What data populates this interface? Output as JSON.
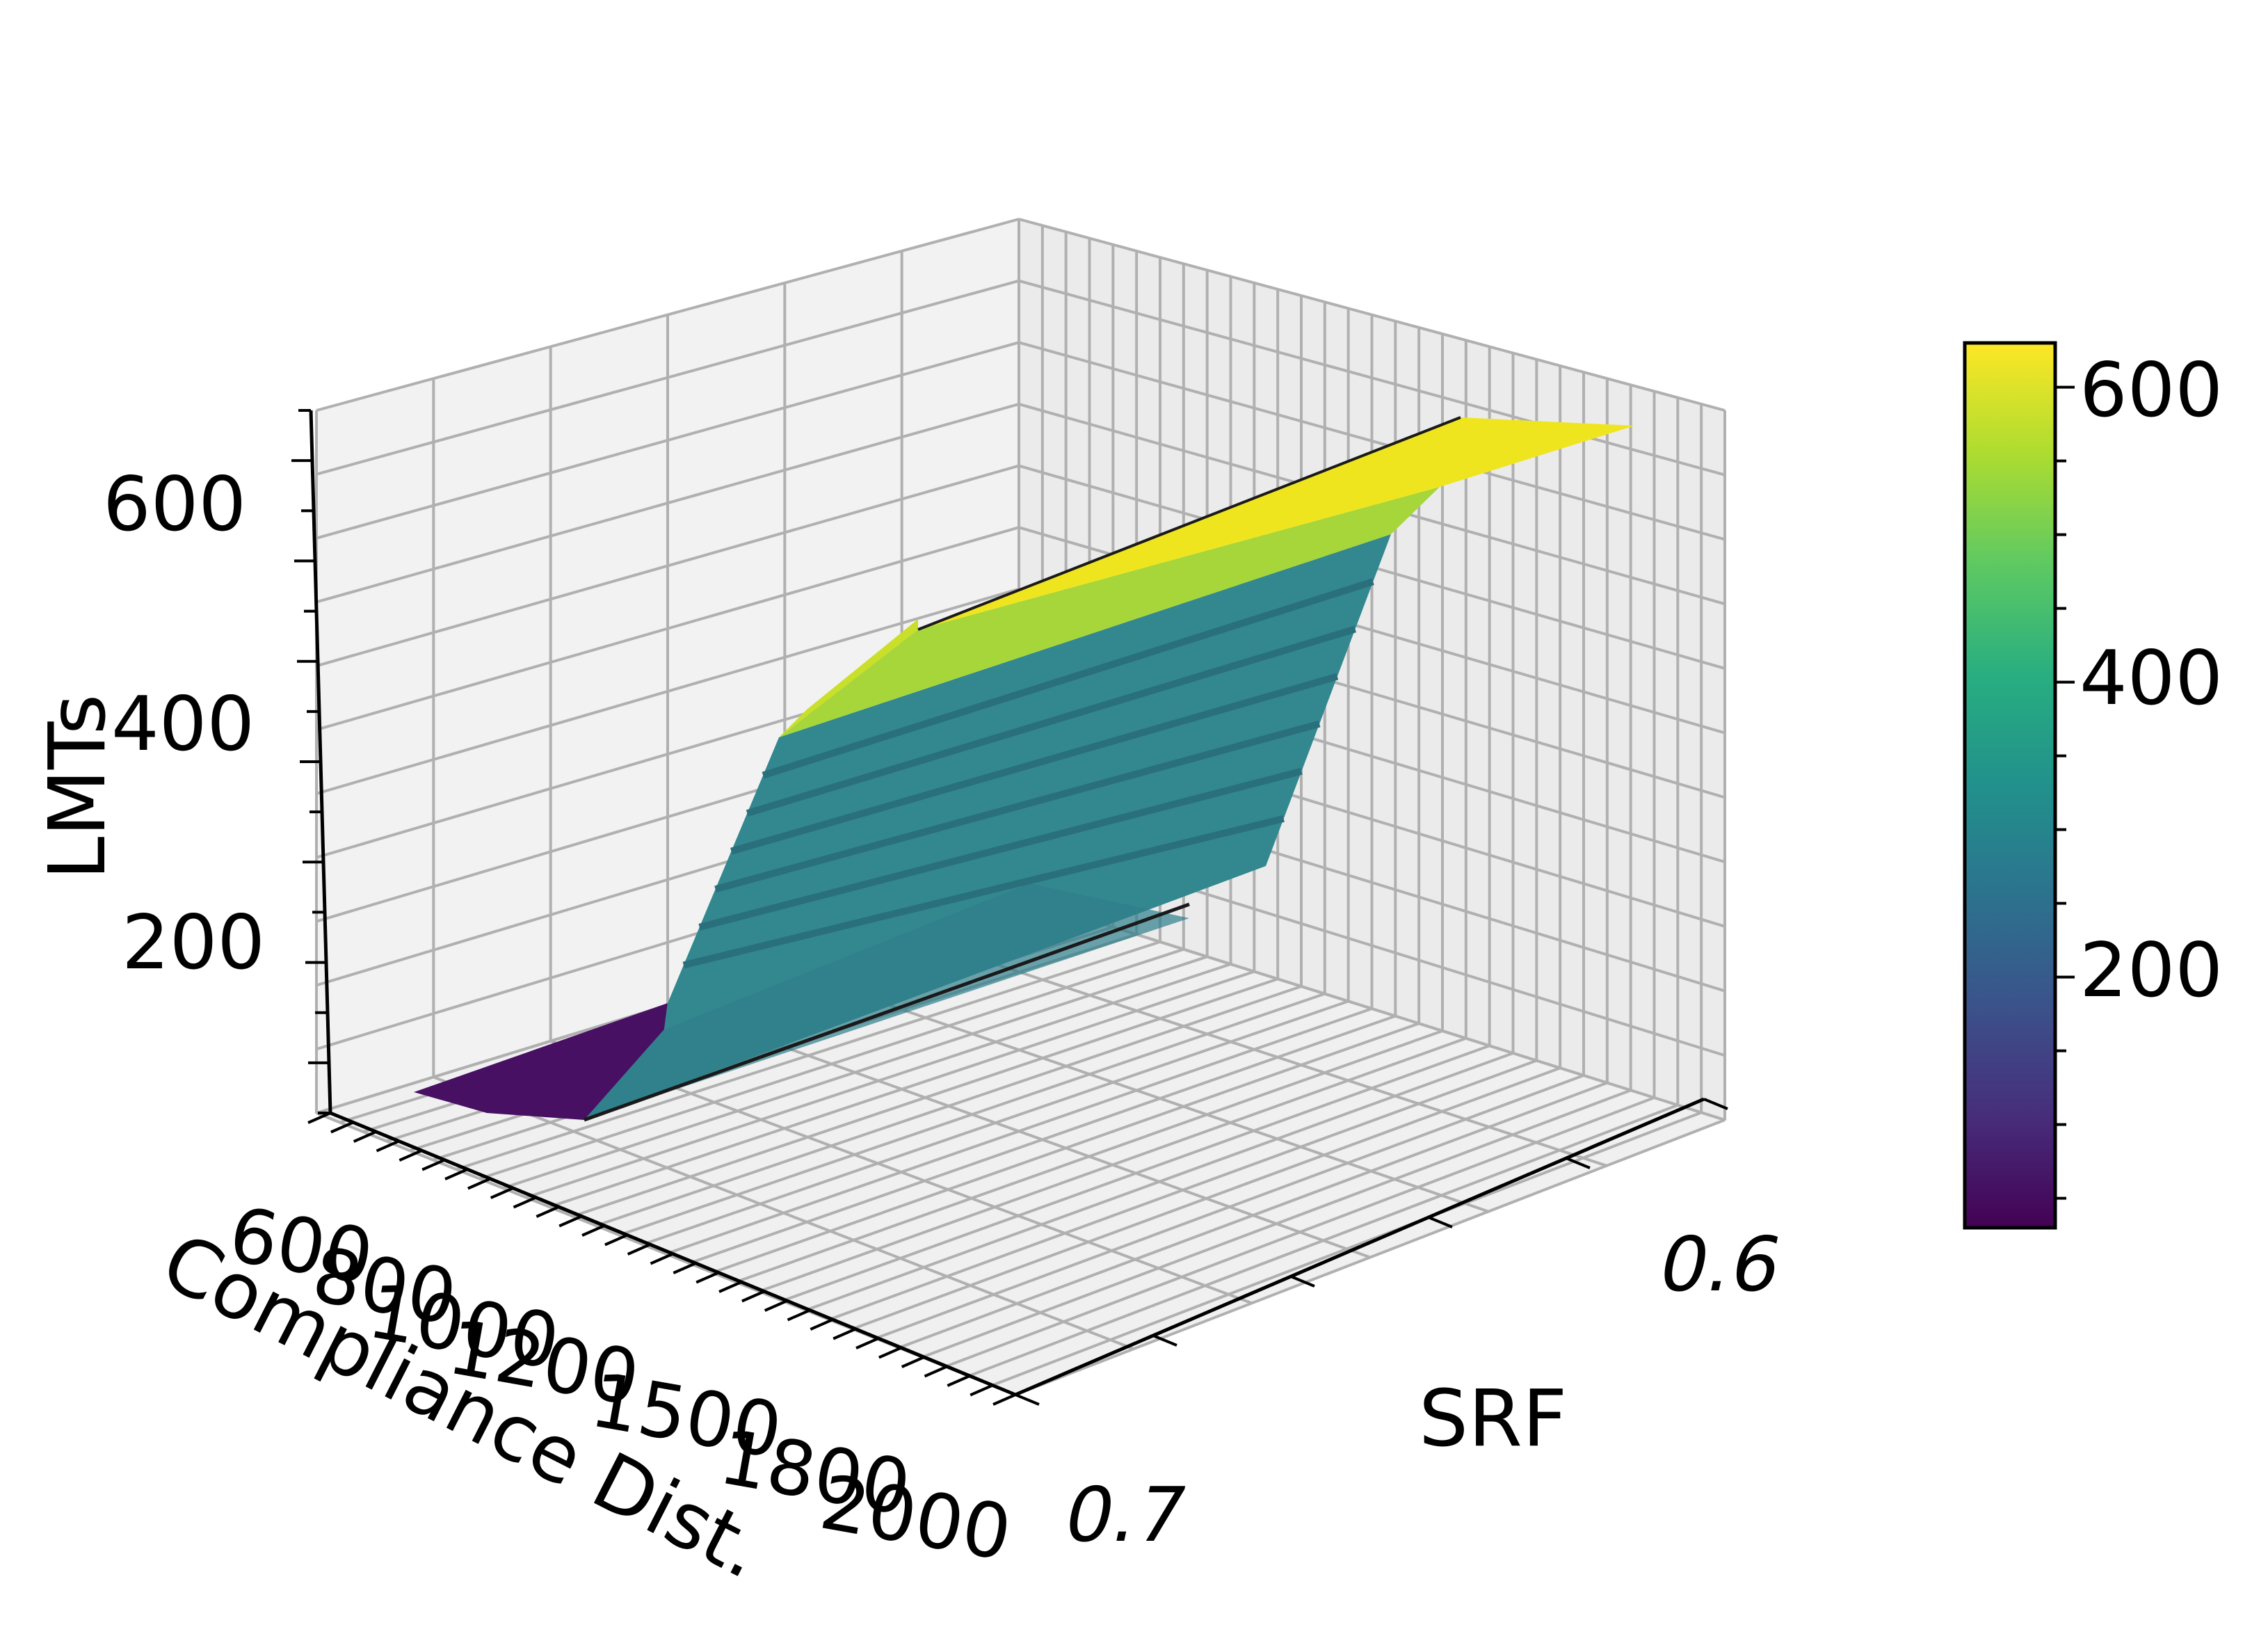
{
  "chart_data": {
    "type": "surface",
    "colormap": "viridis",
    "xlabel": "Compliance Dist.",
    "ylabel": "SRF",
    "zlabel": "LMTs",
    "x_ticks": [
      "600",
      "800",
      "1000",
      "1200",
      "1500",
      "1800",
      "2000"
    ],
    "y_ticks": [
      "0.6",
      "0.7"
    ],
    "z_ticks": [
      "200",
      "400",
      "600"
    ],
    "colorbar_ticks": [
      "200",
      "400",
      "600"
    ],
    "colorbar_range": [
      30,
      630
    ],
    "zlim": [
      60,
      660
    ],
    "grid": true,
    "colorbar_placement": "right",
    "surface": {
      "x": [
        600,
        800,
        1000,
        1200,
        1500,
        1800,
        2000
      ],
      "srf_range": [
        0.55,
        0.7
      ],
      "lmts_by_x": [
        30,
        30,
        275,
        275,
        275,
        275,
        630
      ],
      "note_levels": [
        30,
        275,
        560,
        630
      ]
    }
  },
  "colors": {
    "pane": "#f2f2f2",
    "pane_edge": "#e6e6e6",
    "grid": "#b0b0b0",
    "axis": "#000000"
  }
}
